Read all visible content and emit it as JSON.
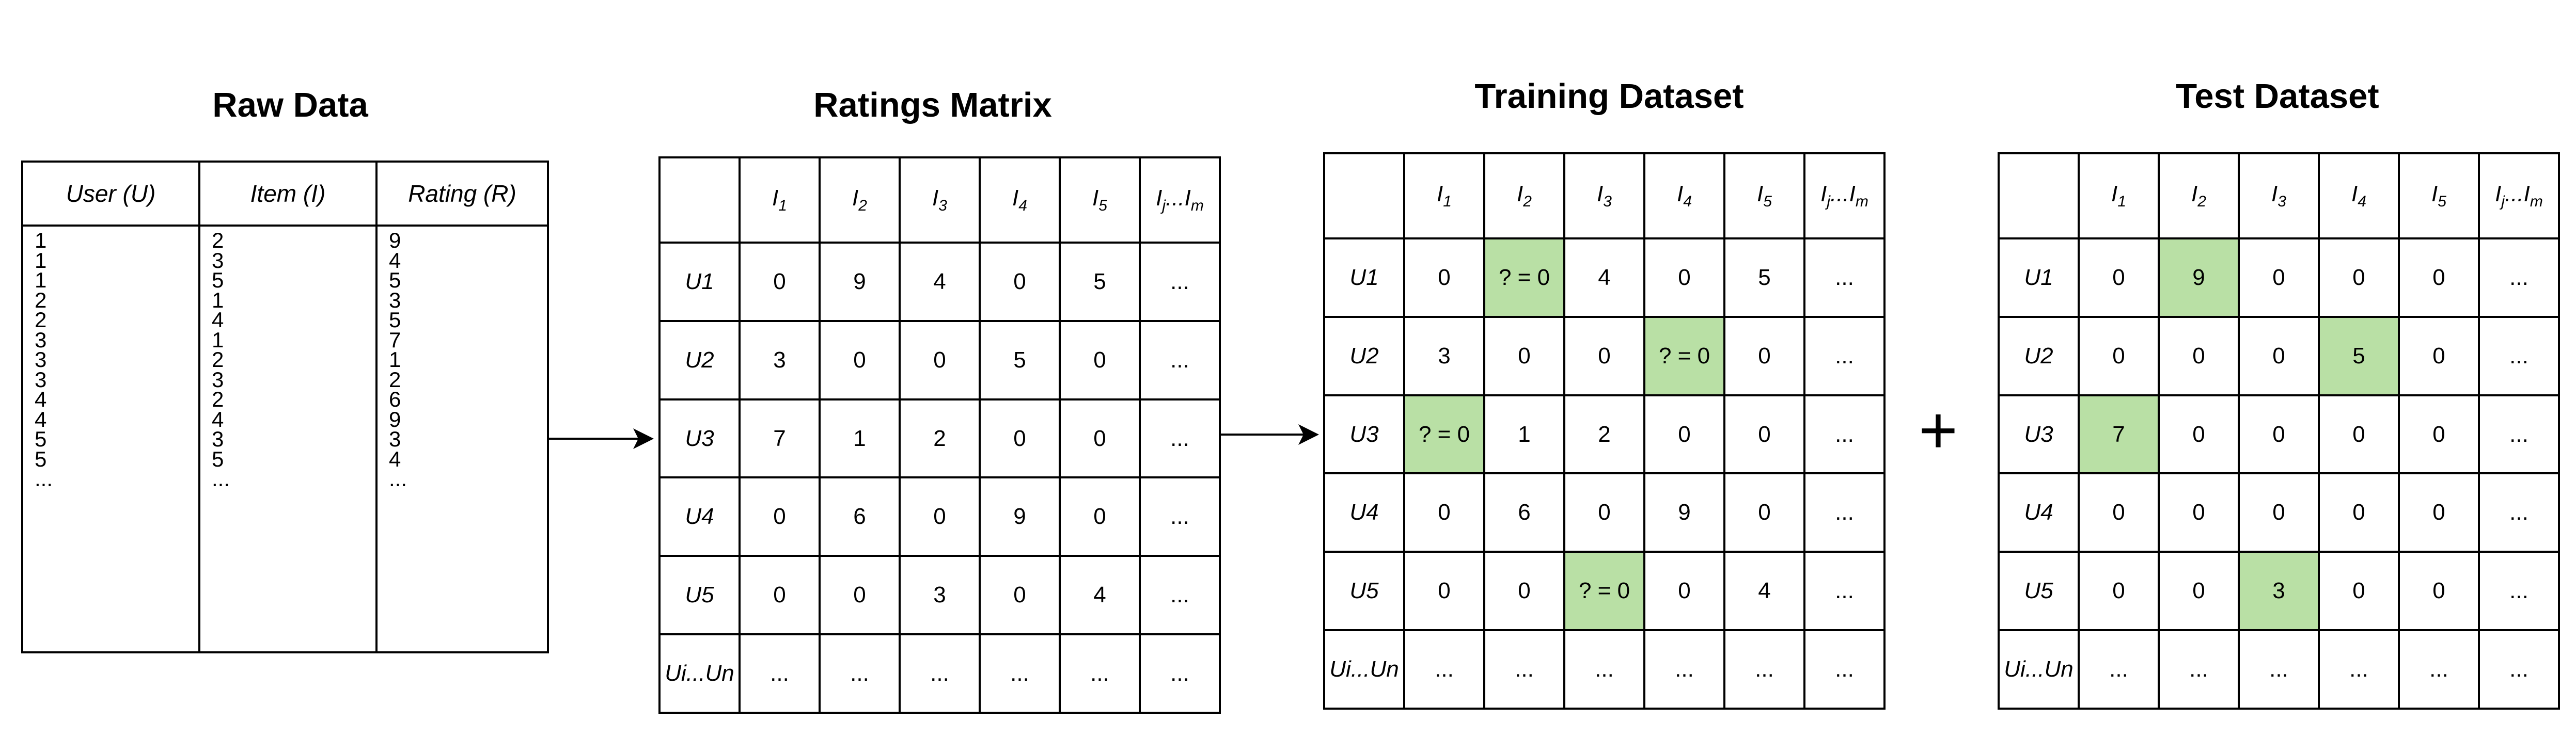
{
  "raw": {
    "title": "Raw Data",
    "headers": [
      "User (U)",
      "Item (I)",
      "Rating (R)"
    ],
    "rows": [
      [
        "1",
        "2",
        "9"
      ],
      [
        "1",
        "3",
        "4"
      ],
      [
        "1",
        "5",
        "5"
      ],
      [
        "2",
        "1",
        "3"
      ],
      [
        "2",
        "4",
        "5"
      ],
      [
        "3",
        "1",
        "7"
      ],
      [
        "3",
        "2",
        "1"
      ],
      [
        "3",
        "3",
        "2"
      ],
      [
        "4",
        "2",
        "6"
      ],
      [
        "4",
        "4",
        "9"
      ],
      [
        "5",
        "3",
        "3"
      ],
      [
        "5",
        "5",
        "4"
      ],
      [
        "...",
        "...",
        "..."
      ]
    ]
  },
  "matrix_col_headers": [
    "I1",
    "I2",
    "I3",
    "I4",
    "I5",
    "Ij...Im"
  ],
  "matrix_row_labels": [
    "U1",
    "U2",
    "U3",
    "U4",
    "U5",
    "Ui...Un"
  ],
  "highlight_color": "#b9e0a5",
  "ratings": {
    "title": "Ratings Matrix",
    "cells": [
      [
        "0",
        "9",
        "4",
        "0",
        "5",
        "..."
      ],
      [
        "3",
        "0",
        "0",
        "5",
        "0",
        "..."
      ],
      [
        "7",
        "1",
        "2",
        "0",
        "0",
        "..."
      ],
      [
        "0",
        "6",
        "0",
        "9",
        "0",
        "..."
      ],
      [
        "0",
        "0",
        "3",
        "0",
        "4",
        "..."
      ],
      [
        "...",
        "...",
        "...",
        "...",
        "...",
        "..."
      ]
    ]
  },
  "training": {
    "title": "Training Dataset",
    "cells": [
      [
        "0",
        "? = 0",
        "4",
        "0",
        "5",
        "..."
      ],
      [
        "3",
        "0",
        "0",
        "? = 0",
        "0",
        "..."
      ],
      [
        "? = 0",
        "1",
        "2",
        "0",
        "0",
        "..."
      ],
      [
        "0",
        "6",
        "0",
        "9",
        "0",
        "..."
      ],
      [
        "0",
        "0",
        "? = 0",
        "0",
        "4",
        "..."
      ],
      [
        "...",
        "...",
        "...",
        "...",
        "...",
        "..."
      ]
    ]
  },
  "test": {
    "title": "Test Dataset",
    "cells": [
      [
        "0",
        "9",
        "0",
        "0",
        "0",
        "..."
      ],
      [
        "0",
        "0",
        "0",
        "5",
        "0",
        "..."
      ],
      [
        "7",
        "0",
        "0",
        "0",
        "0",
        "..."
      ],
      [
        "0",
        "0",
        "0",
        "0",
        "0",
        "..."
      ],
      [
        "0",
        "0",
        "3",
        "0",
        "0",
        "..."
      ],
      [
        "...",
        "...",
        "...",
        "...",
        "...",
        "..."
      ]
    ]
  },
  "highlighted_cells": [
    [
      0,
      1
    ],
    [
      1,
      3
    ],
    [
      2,
      0
    ],
    [
      4,
      2
    ]
  ],
  "plus_symbol": "+"
}
